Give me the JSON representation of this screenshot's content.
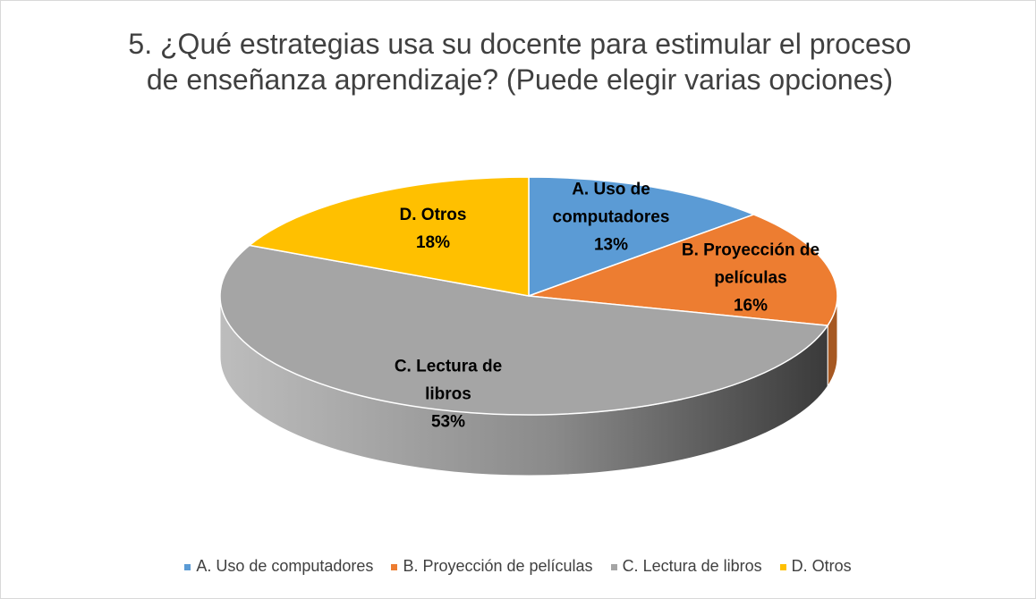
{
  "chart_data": {
    "type": "pie3d",
    "title": "5. ¿Qué estrategias usa su docente para estimular el proceso de enseñanza aprendizaje? (Puede elegir varias opciones)",
    "categories": [
      "A. Uso de computadores",
      "B. Proyección de películas",
      "C. Lectura de libros",
      "D. Otros"
    ],
    "values": [
      13,
      16,
      53,
      18
    ],
    "value_labels": [
      "13%",
      "16%",
      "53%",
      "18%"
    ],
    "colors": [
      "#5b9bd5",
      "#ed7d31",
      "#a5a5a5",
      "#ffc000"
    ],
    "legend": "bottom"
  }
}
